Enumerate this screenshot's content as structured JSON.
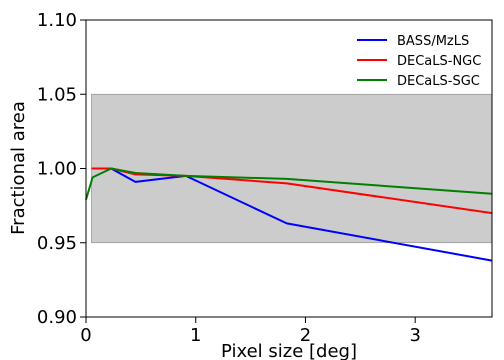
{
  "chart_data": {
    "type": "line",
    "title": "",
    "xlabel": "Pixel size [deg]",
    "ylabel": "Fractional area",
    "xlim": [
      0,
      3.7
    ],
    "ylim": [
      0.9,
      1.1
    ],
    "xticks": [
      {
        "value": 0,
        "label": "0"
      },
      {
        "value": 1,
        "label": "1"
      },
      {
        "value": 2,
        "label": "2"
      },
      {
        "value": 3,
        "label": "3"
      }
    ],
    "yticks": [
      {
        "value": 0.9,
        "label": "0.90"
      },
      {
        "value": 0.95,
        "label": "0.95"
      },
      {
        "value": 1.0,
        "label": "1.00"
      },
      {
        "value": 1.05,
        "label": "1.05"
      },
      {
        "value": 1.1,
        "label": "1.10"
      }
    ],
    "shaded_band": {
      "x_from": 0.05,
      "x_to": 3.7,
      "y_from": 0.95,
      "y_to": 1.05,
      "color": "#cccccc"
    },
    "legend_position": "top-right",
    "grid": false,
    "series": [
      {
        "name": "BASS/MzLS",
        "color": "#0000ff",
        "points": [
          [
            0.05,
            1.0
          ],
          [
            0.23,
            1.0
          ],
          [
            0.45,
            0.991
          ],
          [
            0.91,
            0.995
          ],
          [
            1.83,
            0.963
          ],
          [
            3.7,
            0.938
          ]
        ]
      },
      {
        "name": "DECaLS-NGC",
        "color": "#ff0000",
        "points": [
          [
            0.05,
            1.0
          ],
          [
            0.23,
            1.0
          ],
          [
            0.45,
            0.996
          ],
          [
            0.91,
            0.995
          ],
          [
            1.83,
            0.99
          ],
          [
            3.7,
            0.97
          ]
        ]
      },
      {
        "name": "DECaLS-SGC",
        "color": "#008000",
        "points": [
          [
            0.0,
            0.979
          ],
          [
            0.06,
            0.994
          ],
          [
            0.23,
            1.0
          ],
          [
            0.45,
            0.997
          ],
          [
            0.91,
            0.995
          ],
          [
            1.83,
            0.993
          ],
          [
            3.7,
            0.983
          ]
        ]
      }
    ]
  }
}
